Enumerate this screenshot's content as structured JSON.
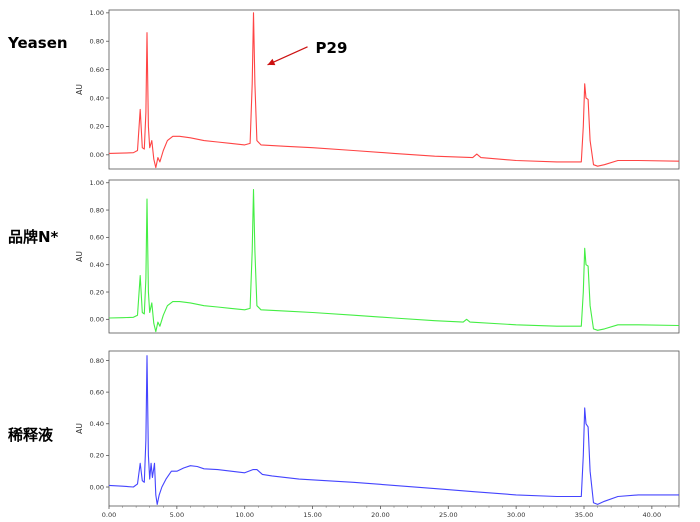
{
  "chart_data": {
    "type": "line",
    "shared_x_axis": {
      "range": [
        0,
        42
      ],
      "ticks": [
        0,
        5,
        10,
        15,
        20,
        25,
        30,
        35,
        40
      ],
      "tick_labels": [
        "0.00",
        "5.00",
        "10.00",
        "15.00",
        "20.00",
        "25.00",
        "30.00",
        "35.00",
        "40.00"
      ]
    },
    "panels": [
      {
        "label": "Yeasen",
        "color": "#ff4444",
        "ylabel": "AU",
        "ylim": [
          -0.1,
          1.02
        ],
        "yticks": [
          0.0,
          0.2,
          0.4,
          0.6,
          0.8,
          1.0
        ],
        "ytick_labels": [
          "0.00",
          "0.20",
          "0.40",
          "0.60",
          "0.80",
          "1.00"
        ],
        "annotation": {
          "text": "P29",
          "x": 10.65,
          "y": 1.0
        },
        "points": [
          [
            0,
            0.01
          ],
          [
            1,
            0.012
          ],
          [
            1.8,
            0.015
          ],
          [
            2.1,
            0.03
          ],
          [
            2.3,
            0.32
          ],
          [
            2.45,
            0.05
          ],
          [
            2.6,
            0.04
          ],
          [
            2.72,
            0.3
          ],
          [
            2.8,
            0.86
          ],
          [
            2.9,
            0.2
          ],
          [
            3.0,
            0.05
          ],
          [
            3.15,
            0.1
          ],
          [
            3.3,
            -0.03
          ],
          [
            3.45,
            -0.09
          ],
          [
            3.6,
            -0.02
          ],
          [
            3.75,
            -0.05
          ],
          [
            4.0,
            0.03
          ],
          [
            4.3,
            0.1
          ],
          [
            4.7,
            0.13
          ],
          [
            5.2,
            0.13
          ],
          [
            6,
            0.12
          ],
          [
            7,
            0.1
          ],
          [
            8,
            0.09
          ],
          [
            9,
            0.08
          ],
          [
            10,
            0.07
          ],
          [
            10.4,
            0.08
          ],
          [
            10.55,
            0.5
          ],
          [
            10.65,
            1.0
          ],
          [
            10.75,
            0.5
          ],
          [
            10.9,
            0.1
          ],
          [
            11.2,
            0.07
          ],
          [
            13,
            0.06
          ],
          [
            15,
            0.05
          ],
          [
            18,
            0.03
          ],
          [
            21,
            0.01
          ],
          [
            24,
            -0.01
          ],
          [
            26.8,
            -0.02
          ],
          [
            27.1,
            0.005
          ],
          [
            27.4,
            -0.02
          ],
          [
            30,
            -0.04
          ],
          [
            33,
            -0.05
          ],
          [
            34.8,
            -0.05
          ],
          [
            34.95,
            0.2
          ],
          [
            35.05,
            0.5
          ],
          [
            35.15,
            0.4
          ],
          [
            35.3,
            0.39
          ],
          [
            35.45,
            0.1
          ],
          [
            35.7,
            -0.07
          ],
          [
            36,
            -0.08
          ],
          [
            36.5,
            -0.07
          ],
          [
            37.5,
            -0.04
          ],
          [
            39,
            -0.04
          ],
          [
            42,
            -0.045
          ]
        ]
      },
      {
        "label": "品牌N*",
        "color": "#44ee44",
        "ylabel": "AU",
        "ylim": [
          -0.1,
          1.02
        ],
        "yticks": [
          0.0,
          0.2,
          0.4,
          0.6,
          0.8,
          1.0
        ],
        "ytick_labels": [
          "0.00",
          "0.20",
          "0.40",
          "0.60",
          "0.80",
          "1.00"
        ],
        "points": [
          [
            0,
            0.01
          ],
          [
            1,
            0.012
          ],
          [
            1.8,
            0.015
          ],
          [
            2.1,
            0.03
          ],
          [
            2.3,
            0.32
          ],
          [
            2.45,
            0.05
          ],
          [
            2.6,
            0.04
          ],
          [
            2.72,
            0.3
          ],
          [
            2.8,
            0.88
          ],
          [
            2.9,
            0.2
          ],
          [
            3.0,
            0.05
          ],
          [
            3.15,
            0.12
          ],
          [
            3.3,
            -0.03
          ],
          [
            3.45,
            -0.09
          ],
          [
            3.6,
            -0.02
          ],
          [
            3.75,
            -0.05
          ],
          [
            4.0,
            0.03
          ],
          [
            4.3,
            0.1
          ],
          [
            4.7,
            0.13
          ],
          [
            5.2,
            0.13
          ],
          [
            6,
            0.12
          ],
          [
            7,
            0.1
          ],
          [
            8,
            0.09
          ],
          [
            9,
            0.08
          ],
          [
            10,
            0.07
          ],
          [
            10.4,
            0.08
          ],
          [
            10.55,
            0.5
          ],
          [
            10.65,
            0.95
          ],
          [
            10.75,
            0.5
          ],
          [
            10.9,
            0.1
          ],
          [
            11.2,
            0.07
          ],
          [
            13,
            0.06
          ],
          [
            15,
            0.05
          ],
          [
            18,
            0.03
          ],
          [
            21,
            0.01
          ],
          [
            24,
            -0.01
          ],
          [
            26.1,
            -0.02
          ],
          [
            26.35,
            0.0
          ],
          [
            26.6,
            -0.02
          ],
          [
            30,
            -0.04
          ],
          [
            33,
            -0.05
          ],
          [
            34.8,
            -0.05
          ],
          [
            34.95,
            0.2
          ],
          [
            35.05,
            0.52
          ],
          [
            35.15,
            0.4
          ],
          [
            35.3,
            0.39
          ],
          [
            35.45,
            0.1
          ],
          [
            35.7,
            -0.07
          ],
          [
            36,
            -0.08
          ],
          [
            36.5,
            -0.07
          ],
          [
            37.5,
            -0.04
          ],
          [
            39,
            -0.04
          ],
          [
            42,
            -0.045
          ]
        ]
      },
      {
        "label": "稀释液",
        "color": "#4444ff",
        "ylabel": "AU",
        "ylim": [
          -0.12,
          0.86
        ],
        "yticks": [
          0.0,
          0.2,
          0.4,
          0.6,
          0.8
        ],
        "ytick_labels": [
          "0.00",
          "0.20",
          "0.40",
          "0.60",
          "0.80"
        ],
        "points": [
          [
            0,
            0.01
          ],
          [
            1,
            0.005
          ],
          [
            1.8,
            0.0
          ],
          [
            2.1,
            0.02
          ],
          [
            2.3,
            0.15
          ],
          [
            2.45,
            0.04
          ],
          [
            2.6,
            0.03
          ],
          [
            2.72,
            0.3
          ],
          [
            2.8,
            0.83
          ],
          [
            2.9,
            0.2
          ],
          [
            3.0,
            0.05
          ],
          [
            3.1,
            0.15
          ],
          [
            3.2,
            0.06
          ],
          [
            3.35,
            0.15
          ],
          [
            3.45,
            -0.05
          ],
          [
            3.55,
            -0.11
          ],
          [
            3.7,
            -0.05
          ],
          [
            3.9,
            0.0
          ],
          [
            4.2,
            0.05
          ],
          [
            4.6,
            0.1
          ],
          [
            5.0,
            0.1
          ],
          [
            5.5,
            0.12
          ],
          [
            6,
            0.135
          ],
          [
            6.5,
            0.13
          ],
          [
            7,
            0.115
          ],
          [
            8,
            0.11
          ],
          [
            9,
            0.1
          ],
          [
            10,
            0.09
          ],
          [
            10.6,
            0.11
          ],
          [
            10.9,
            0.11
          ],
          [
            11.3,
            0.08
          ],
          [
            12,
            0.07
          ],
          [
            14,
            0.05
          ],
          [
            16,
            0.04
          ],
          [
            18,
            0.03
          ],
          [
            21,
            0.01
          ],
          [
            24,
            -0.01
          ],
          [
            27,
            -0.03
          ],
          [
            30,
            -0.05
          ],
          [
            33,
            -0.06
          ],
          [
            34.8,
            -0.06
          ],
          [
            34.95,
            0.2
          ],
          [
            35.05,
            0.5
          ],
          [
            35.15,
            0.4
          ],
          [
            35.3,
            0.38
          ],
          [
            35.45,
            0.1
          ],
          [
            35.7,
            -0.1
          ],
          [
            36,
            -0.11
          ],
          [
            36.5,
            -0.09
          ],
          [
            37.5,
            -0.06
          ],
          [
            39,
            -0.05
          ],
          [
            42,
            -0.05
          ]
        ]
      }
    ]
  }
}
